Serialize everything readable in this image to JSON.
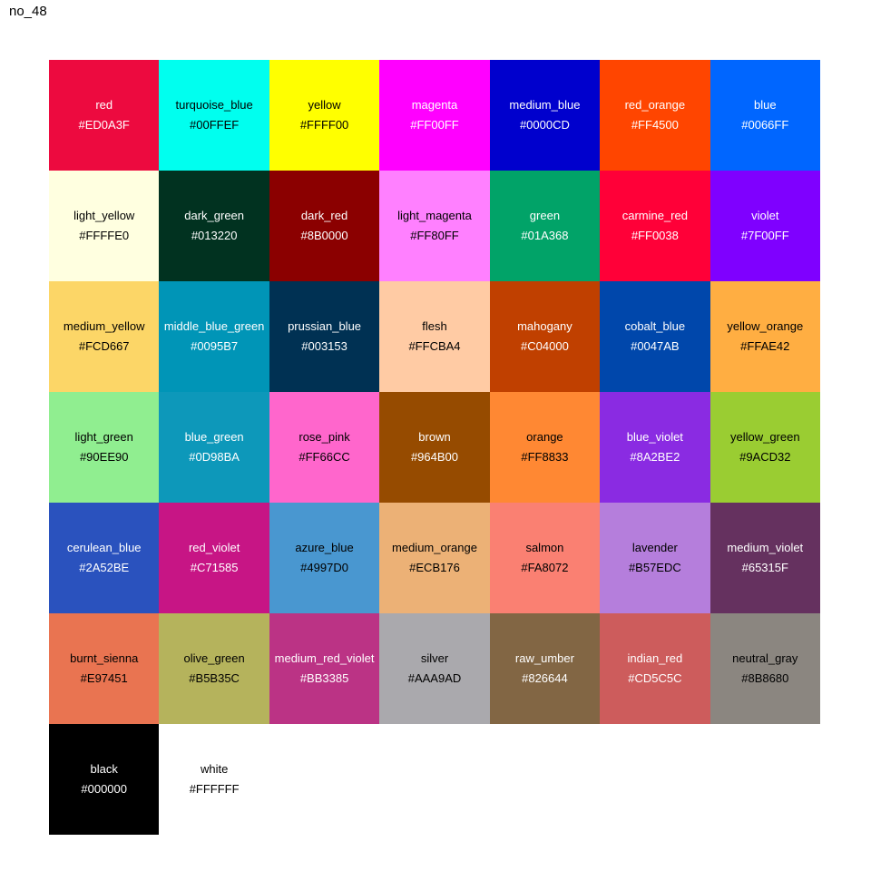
{
  "title": "no_48",
  "chart_data": {
    "type": "table",
    "title": "no_48",
    "columns": [
      "name",
      "hex"
    ],
    "grid_columns": 7,
    "legend_position": "none",
    "rows": [
      {
        "name": "red",
        "hex": "#ED0A3F",
        "text_color": "#FFFFFF"
      },
      {
        "name": "turquoise_blue",
        "hex": "#00FFEF",
        "text_color": "#000000"
      },
      {
        "name": "yellow",
        "hex": "#FFFF00",
        "text_color": "#000000"
      },
      {
        "name": "magenta",
        "hex": "#FF00FF",
        "text_color": "#FFFFFF"
      },
      {
        "name": "medium_blue",
        "hex": "#0000CD",
        "text_color": "#FFFFFF"
      },
      {
        "name": "red_orange",
        "hex": "#FF4500",
        "text_color": "#FFFFFF"
      },
      {
        "name": "blue",
        "hex": "#0066FF",
        "text_color": "#FFFFFF"
      },
      {
        "name": "light_yellow",
        "hex": "#FFFFE0",
        "text_color": "#000000"
      },
      {
        "name": "dark_green",
        "hex": "#013220",
        "text_color": "#FFFFFF"
      },
      {
        "name": "dark_red",
        "hex": "#8B0000",
        "text_color": "#FFFFFF"
      },
      {
        "name": "light_magenta",
        "hex": "#FF80FF",
        "text_color": "#000000"
      },
      {
        "name": "green",
        "hex": "#01A368",
        "text_color": "#FFFFFF"
      },
      {
        "name": "carmine_red",
        "hex": "#FF0038",
        "text_color": "#FFFFFF"
      },
      {
        "name": "violet",
        "hex": "#7F00FF",
        "text_color": "#FFFFFF"
      },
      {
        "name": "medium_yellow",
        "hex": "#FCD667",
        "text_color": "#000000"
      },
      {
        "name": "middle_blue_green",
        "hex": "#0095B7",
        "text_color": "#FFFFFF"
      },
      {
        "name": "prussian_blue",
        "hex": "#003153",
        "text_color": "#FFFFFF"
      },
      {
        "name": "flesh",
        "hex": "#FFCBA4",
        "text_color": "#000000"
      },
      {
        "name": "mahogany",
        "hex": "#C04000",
        "text_color": "#FFFFFF"
      },
      {
        "name": "cobalt_blue",
        "hex": "#0047AB",
        "text_color": "#FFFFFF"
      },
      {
        "name": "yellow_orange",
        "hex": "#FFAE42",
        "text_color": "#000000"
      },
      {
        "name": "light_green",
        "hex": "#90EE90",
        "text_color": "#000000"
      },
      {
        "name": "blue_green",
        "hex": "#0D98BA",
        "text_color": "#FFFFFF"
      },
      {
        "name": "rose_pink",
        "hex": "#FF66CC",
        "text_color": "#000000"
      },
      {
        "name": "brown",
        "hex": "#964B00",
        "text_color": "#FFFFFF"
      },
      {
        "name": "orange",
        "hex": "#FF8833",
        "text_color": "#000000"
      },
      {
        "name": "blue_violet",
        "hex": "#8A2BE2",
        "text_color": "#FFFFFF"
      },
      {
        "name": "yellow_green",
        "hex": "#9ACD32",
        "text_color": "#000000"
      },
      {
        "name": "cerulean_blue",
        "hex": "#2A52BE",
        "text_color": "#FFFFFF"
      },
      {
        "name": "red_violet",
        "hex": "#C71585",
        "text_color": "#FFFFFF"
      },
      {
        "name": "azure_blue",
        "hex": "#4997D0",
        "text_color": "#000000"
      },
      {
        "name": "medium_orange",
        "hex": "#ECB176",
        "text_color": "#000000"
      },
      {
        "name": "salmon",
        "hex": "#FA8072",
        "text_color": "#000000"
      },
      {
        "name": "lavender",
        "hex": "#B57EDC",
        "text_color": "#000000"
      },
      {
        "name": "medium_violet",
        "hex": "#65315F",
        "text_color": "#FFFFFF"
      },
      {
        "name": "burnt_sienna",
        "hex": "#E97451",
        "text_color": "#000000"
      },
      {
        "name": "olive_green",
        "hex": "#B5B35C",
        "text_color": "#000000"
      },
      {
        "name": "medium_red_violet",
        "hex": "#BB3385",
        "text_color": "#FFFFFF"
      },
      {
        "name": "silver",
        "hex": "#AAA9AD",
        "text_color": "#000000"
      },
      {
        "name": "raw_umber",
        "hex": "#826644",
        "text_color": "#FFFFFF"
      },
      {
        "name": "indian_red",
        "hex": "#CD5C5C",
        "text_color": "#FFFFFF"
      },
      {
        "name": "neutral_gray",
        "hex": "#8B8680",
        "text_color": "#000000"
      },
      {
        "name": "black",
        "hex": "#000000",
        "text_color": "#FFFFFF"
      },
      {
        "name": "white",
        "hex": "#FFFFFF",
        "text_color": "#000000"
      }
    ]
  }
}
